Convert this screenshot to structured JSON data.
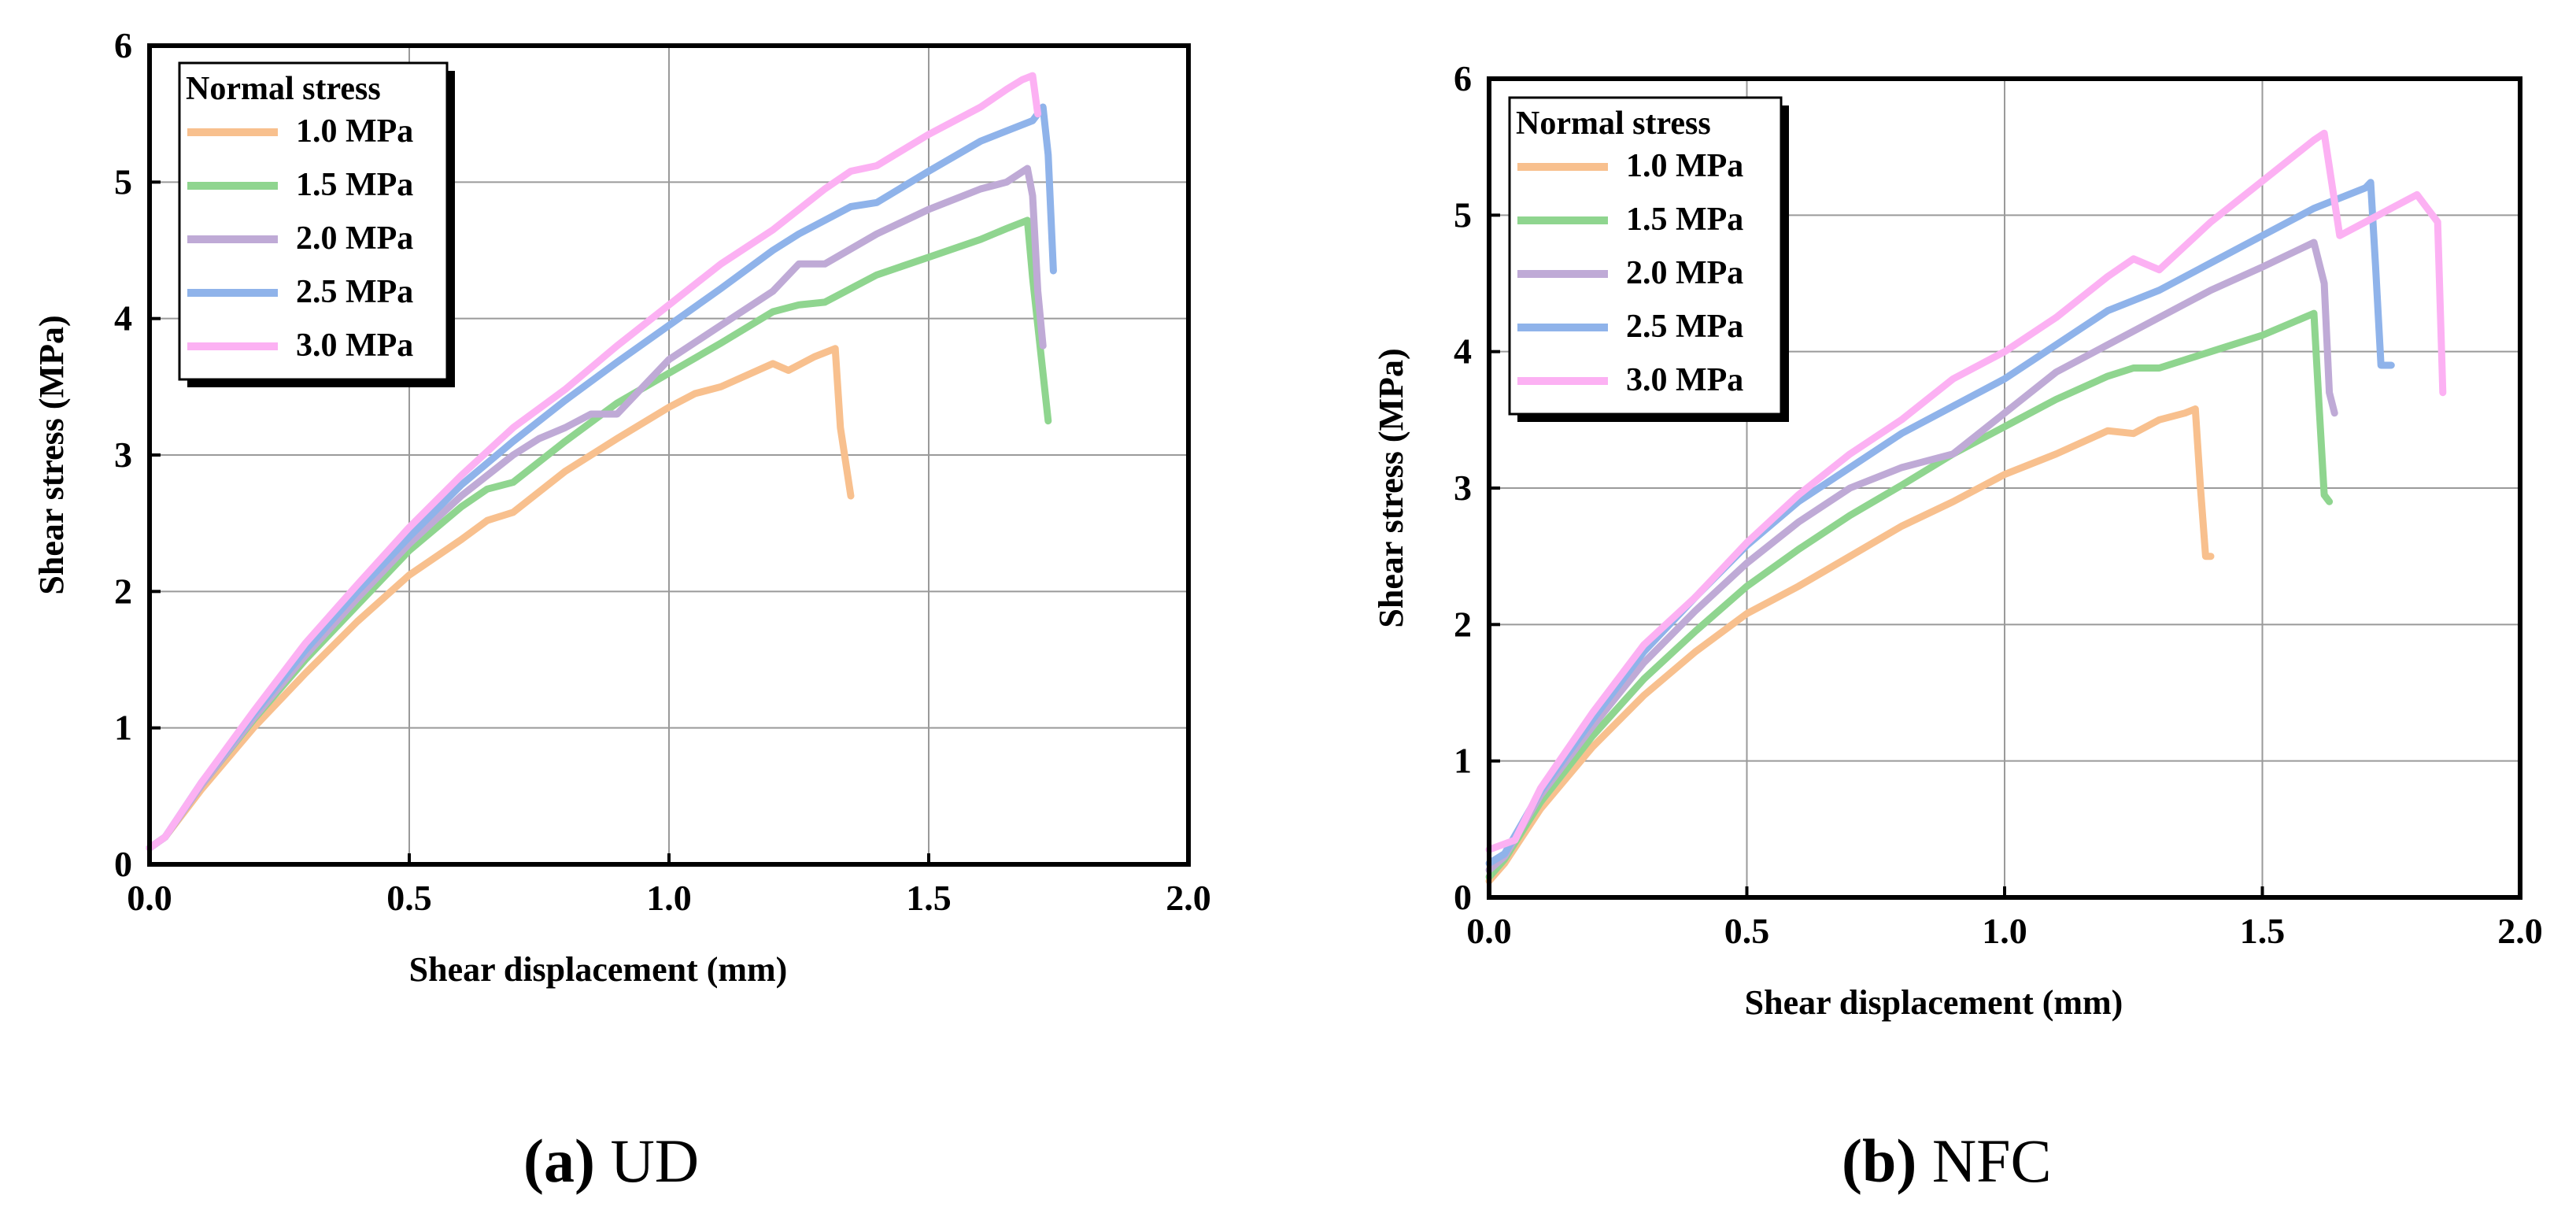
{
  "figure": {
    "panels": [
      {
        "caption_letter": "(a)",
        "caption_text": "UD"
      },
      {
        "caption_letter": "(b)",
        "caption_text": "NFC"
      }
    ]
  },
  "chart_data": [
    {
      "type": "line",
      "panel": "(a) UD",
      "xlabel": "Shear displacement (mm)",
      "ylabel": "Shear stress (MPa)",
      "xlim": [
        0,
        2.0
      ],
      "ylim": [
        0,
        6
      ],
      "xticks": [
        "0.0",
        "0.5",
        "1.0",
        "1.5",
        "2.0"
      ],
      "yticks": [
        "0",
        "1",
        "2",
        "3",
        "4",
        "5",
        "6"
      ],
      "grid": true,
      "legend_title": "Normal stress",
      "legend_position": "top-left",
      "series": [
        {
          "name": "1.0 MPa",
          "color": "#f8c08e",
          "x": [
            0,
            0.03,
            0.1,
            0.2,
            0.3,
            0.4,
            0.5,
            0.6,
            0.65,
            0.7,
            0.8,
            0.9,
            1.0,
            1.05,
            1.1,
            1.2,
            1.23,
            1.28,
            1.32,
            1.33,
            1.35
          ],
          "y": [
            0.12,
            0.2,
            0.55,
            1.0,
            1.4,
            1.78,
            2.12,
            2.38,
            2.52,
            2.58,
            2.88,
            3.12,
            3.35,
            3.45,
            3.5,
            3.67,
            3.62,
            3.72,
            3.78,
            3.2,
            2.7
          ]
        },
        {
          "name": "1.5 MPa",
          "color": "#8fd58f",
          "x": [
            0,
            0.03,
            0.1,
            0.2,
            0.3,
            0.4,
            0.5,
            0.6,
            0.65,
            0.7,
            0.8,
            0.9,
            1.0,
            1.1,
            1.2,
            1.25,
            1.3,
            1.4,
            1.5,
            1.6,
            1.65,
            1.69,
            1.7,
            1.72,
            1.73
          ],
          "y": [
            0.12,
            0.2,
            0.58,
            1.06,
            1.5,
            1.9,
            2.3,
            2.62,
            2.75,
            2.8,
            3.1,
            3.38,
            3.6,
            3.82,
            4.05,
            4.1,
            4.12,
            4.32,
            4.45,
            4.58,
            4.66,
            4.72,
            4.3,
            3.6,
            3.25
          ]
        },
        {
          "name": "2.0 MPa",
          "color": "#bfaad6",
          "x": [
            0,
            0.03,
            0.1,
            0.2,
            0.3,
            0.4,
            0.5,
            0.6,
            0.7,
            0.75,
            0.8,
            0.85,
            0.9,
            1.0,
            1.1,
            1.2,
            1.25,
            1.3,
            1.4,
            1.5,
            1.6,
            1.65,
            1.69,
            1.7,
            1.71,
            1.72
          ],
          "y": [
            0.12,
            0.2,
            0.58,
            1.07,
            1.53,
            1.95,
            2.35,
            2.7,
            3.0,
            3.12,
            3.2,
            3.3,
            3.3,
            3.7,
            3.95,
            4.2,
            4.4,
            4.4,
            4.62,
            4.8,
            4.95,
            5.0,
            5.1,
            4.9,
            4.2,
            3.8
          ]
        },
        {
          "name": "2.5 MPa",
          "color": "#8fb3ea",
          "x": [
            0,
            0.03,
            0.1,
            0.2,
            0.3,
            0.4,
            0.5,
            0.6,
            0.7,
            0.8,
            0.9,
            1.0,
            1.1,
            1.2,
            1.25,
            1.3,
            1.35,
            1.4,
            1.5,
            1.6,
            1.7,
            1.72,
            1.73,
            1.74
          ],
          "y": [
            0.12,
            0.2,
            0.6,
            1.1,
            1.57,
            2.0,
            2.4,
            2.78,
            3.1,
            3.4,
            3.68,
            3.95,
            4.22,
            4.5,
            4.62,
            4.72,
            4.82,
            4.85,
            5.08,
            5.3,
            5.45,
            5.55,
            5.2,
            4.35
          ]
        },
        {
          "name": "3.0 MPa",
          "color": "#fcb1f3",
          "x": [
            0,
            0.03,
            0.1,
            0.2,
            0.3,
            0.4,
            0.5,
            0.6,
            0.7,
            0.8,
            0.9,
            1.0,
            1.1,
            1.2,
            1.3,
            1.35,
            1.4,
            1.5,
            1.6,
            1.65,
            1.68,
            1.7,
            1.71
          ],
          "y": [
            0.12,
            0.2,
            0.6,
            1.12,
            1.62,
            2.05,
            2.47,
            2.85,
            3.2,
            3.48,
            3.8,
            4.1,
            4.4,
            4.65,
            4.95,
            5.08,
            5.12,
            5.35,
            5.55,
            5.68,
            5.75,
            5.78,
            5.5
          ]
        }
      ]
    },
    {
      "type": "line",
      "panel": "(b) NFC",
      "xlabel": "Shear displacement (mm)",
      "ylabel": "Shear stress (MPa)",
      "xlim": [
        0,
        2.0
      ],
      "ylim": [
        0,
        6
      ],
      "xticks": [
        "0.0",
        "0.5",
        "1.0",
        "1.5",
        "2.0"
      ],
      "yticks": [
        "0",
        "1",
        "2",
        "3",
        "4",
        "5",
        "6"
      ],
      "grid": true,
      "legend_title": "Normal stress",
      "legend_position": "top-left",
      "series": [
        {
          "name": "1.0 MPa",
          "color": "#f8c08e",
          "x": [
            0,
            0.03,
            0.1,
            0.2,
            0.3,
            0.4,
            0.5,
            0.6,
            0.7,
            0.8,
            0.9,
            1.0,
            1.1,
            1.2,
            1.25,
            1.3,
            1.35,
            1.37,
            1.38,
            1.39,
            1.4
          ],
          "y": [
            0.12,
            0.25,
            0.65,
            1.1,
            1.48,
            1.8,
            2.08,
            2.28,
            2.5,
            2.72,
            2.9,
            3.1,
            3.25,
            3.42,
            3.4,
            3.5,
            3.55,
            3.58,
            3.0,
            2.5,
            2.5
          ]
        },
        {
          "name": "1.5 MPa",
          "color": "#8fd58f",
          "x": [
            0,
            0.03,
            0.1,
            0.2,
            0.3,
            0.4,
            0.5,
            0.6,
            0.7,
            0.8,
            0.9,
            1.0,
            1.1,
            1.2,
            1.25,
            1.3,
            1.4,
            1.5,
            1.55,
            1.6,
            1.61,
            1.62,
            1.63
          ],
          "y": [
            0.15,
            0.28,
            0.7,
            1.18,
            1.6,
            1.95,
            2.28,
            2.55,
            2.8,
            3.02,
            3.25,
            3.45,
            3.65,
            3.82,
            3.88,
            3.88,
            4.0,
            4.12,
            4.2,
            4.28,
            3.6,
            2.95,
            2.9
          ]
        },
        {
          "name": "2.0 MPa",
          "color": "#bfaad6",
          "x": [
            0,
            0.03,
            0.1,
            0.2,
            0.3,
            0.4,
            0.5,
            0.6,
            0.7,
            0.8,
            0.85,
            0.9,
            1.0,
            1.1,
            1.2,
            1.3,
            1.4,
            1.5,
            1.6,
            1.62,
            1.63,
            1.64
          ],
          "y": [
            0.2,
            0.3,
            0.75,
            1.25,
            1.72,
            2.1,
            2.45,
            2.75,
            3.0,
            3.15,
            3.2,
            3.25,
            3.55,
            3.85,
            4.05,
            4.25,
            4.45,
            4.62,
            4.8,
            4.5,
            3.7,
            3.55
          ]
        },
        {
          "name": "2.5 MPa",
          "color": "#8fb3ea",
          "x": [
            0,
            0.03,
            0.1,
            0.2,
            0.3,
            0.4,
            0.5,
            0.6,
            0.7,
            0.8,
            0.9,
            1.0,
            1.1,
            1.2,
            1.3,
            1.4,
            1.5,
            1.6,
            1.7,
            1.71,
            1.72,
            1.73,
            1.75
          ],
          "y": [
            0.25,
            0.32,
            0.78,
            1.3,
            1.8,
            2.2,
            2.58,
            2.9,
            3.15,
            3.4,
            3.6,
            3.8,
            4.05,
            4.3,
            4.45,
            4.65,
            4.85,
            5.05,
            5.2,
            5.24,
            4.6,
            3.9,
            3.9
          ]
        },
        {
          "name": "3.0 MPa",
          "color": "#fcb1f3",
          "x": [
            0,
            0.05,
            0.1,
            0.2,
            0.3,
            0.4,
            0.5,
            0.6,
            0.7,
            0.8,
            0.9,
            1.0,
            1.1,
            1.2,
            1.25,
            1.3,
            1.4,
            1.5,
            1.6,
            1.62,
            1.65,
            1.7,
            1.8,
            1.82,
            1.84,
            1.85
          ],
          "y": [
            0.35,
            0.42,
            0.8,
            1.35,
            1.85,
            2.2,
            2.6,
            2.95,
            3.25,
            3.5,
            3.8,
            4.0,
            4.25,
            4.55,
            4.68,
            4.6,
            4.95,
            5.25,
            5.55,
            5.6,
            4.85,
            4.95,
            5.15,
            5.05,
            4.95,
            3.7
          ]
        }
      ]
    }
  ]
}
